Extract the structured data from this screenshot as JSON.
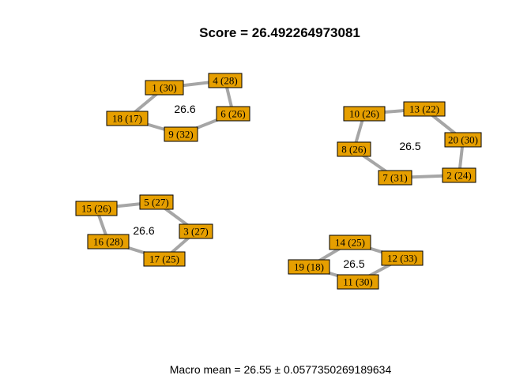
{
  "title": "Score =  26.492264973081",
  "footer": "Macro mean = 26.55 ± 0.0577350269189634",
  "colors": {
    "node_fill": "#E69F00",
    "edge": "#a6a6a6"
  },
  "clusters": [
    {
      "mean": "26.6",
      "nodes": [
        {
          "id": "1",
          "label": "1 (30)"
        },
        {
          "id": "4",
          "label": "4 (28)"
        },
        {
          "id": "6",
          "label": "6 (26)"
        },
        {
          "id": "9",
          "label": "9 (32)"
        },
        {
          "id": "18",
          "label": "18 (17)"
        }
      ],
      "edges": [
        [
          "1",
          "4"
        ],
        [
          "4",
          "6"
        ],
        [
          "6",
          "9"
        ],
        [
          "9",
          "18"
        ],
        [
          "18",
          "1"
        ]
      ]
    },
    {
      "mean": "26.5",
      "nodes": [
        {
          "id": "10",
          "label": "10 (26)"
        },
        {
          "id": "13",
          "label": "13 (22)"
        },
        {
          "id": "20",
          "label": "20 (30)"
        },
        {
          "id": "2",
          "label": "2 (24)"
        },
        {
          "id": "7",
          "label": "7 (31)"
        },
        {
          "id": "8",
          "label": "8 (26)"
        }
      ],
      "edges": [
        [
          "10",
          "13"
        ],
        [
          "13",
          "20"
        ],
        [
          "20",
          "2"
        ],
        [
          "2",
          "7"
        ],
        [
          "7",
          "8"
        ],
        [
          "8",
          "10"
        ]
      ]
    },
    {
      "mean": "26.6",
      "nodes": [
        {
          "id": "15",
          "label": "15 (26)"
        },
        {
          "id": "5",
          "label": "5 (27)"
        },
        {
          "id": "3",
          "label": "3 (27)"
        },
        {
          "id": "17",
          "label": "17 (25)"
        },
        {
          "id": "16",
          "label": "16 (28)"
        }
      ],
      "edges": [
        [
          "15",
          "5"
        ],
        [
          "5",
          "3"
        ],
        [
          "3",
          "17"
        ],
        [
          "17",
          "16"
        ],
        [
          "16",
          "15"
        ]
      ]
    },
    {
      "mean": "26.5",
      "nodes": [
        {
          "id": "14",
          "label": "14 (25)"
        },
        {
          "id": "12",
          "label": "12 (33)"
        },
        {
          "id": "11",
          "label": "11 (30)"
        },
        {
          "id": "19",
          "label": "19 (18)"
        }
      ],
      "edges": [
        [
          "14",
          "12"
        ],
        [
          "12",
          "11"
        ],
        [
          "11",
          "19"
        ],
        [
          "19",
          "14"
        ]
      ]
    }
  ]
}
